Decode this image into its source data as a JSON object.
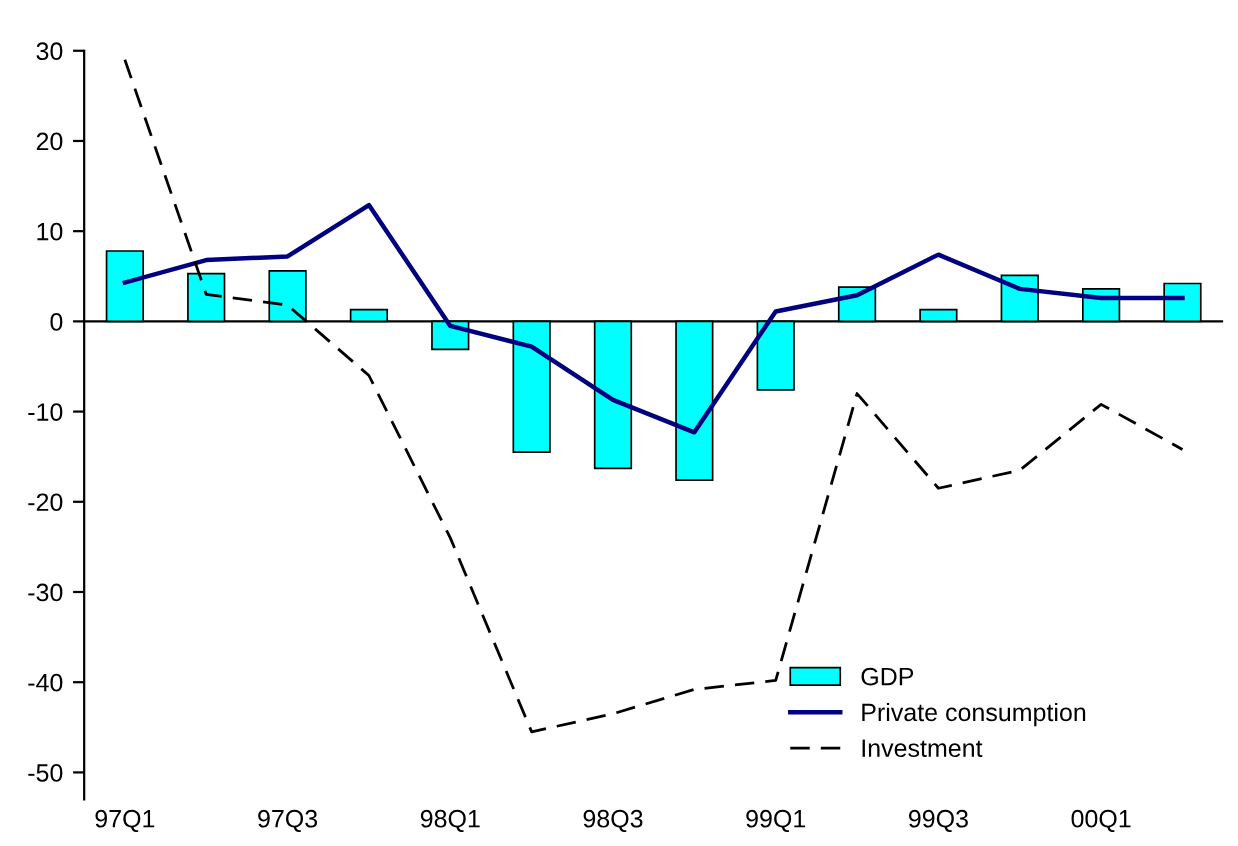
{
  "chart_data": {
    "type": "bar",
    "categories": [
      "97Q1",
      null,
      "97Q3",
      null,
      "98Q1",
      null,
      "98Q3",
      null,
      "99Q1",
      null,
      "99Q3",
      null,
      "00Q1",
      null
    ],
    "series": [
      {
        "name": "GDP",
        "color": "#00ffff",
        "values": [
          7.8,
          5.3,
          5.6,
          1.3,
          -3.1,
          -14.5,
          -16.3,
          -17.6,
          -7.6,
          3.8,
          1.3,
          5.1,
          3.6,
          4.2
        ]
      },
      {
        "name": "Private consumption",
        "type": "line",
        "color": "#000080",
        "line_style": "solid",
        "values": [
          4.3,
          6.8,
          7.2,
          12.9,
          -0.5,
          -2.8,
          -8.7,
          -12.3,
          1.1,
          2.9,
          7.4,
          3.6,
          2.6,
          2.6
        ]
      },
      {
        "name": "Investment",
        "type": "line",
        "color": "#000000",
        "line_style": "dashed",
        "values": [
          29,
          3,
          1.8,
          -6,
          -24,
          -45.5,
          -43.5,
          -40.8,
          -39.8,
          -8,
          -18.5,
          -16.5,
          -9.2,
          -14.2
        ]
      }
    ],
    "ylim": [
      -53,
      30
    ],
    "yticks": [
      -50,
      -40,
      -30,
      -20,
      -10,
      0,
      10,
      20,
      30
    ],
    "grid": false,
    "legend": "bottom right",
    "ref_lines": [
      {
        "axis": "y",
        "value": 0,
        "color": "#000000"
      }
    ]
  }
}
